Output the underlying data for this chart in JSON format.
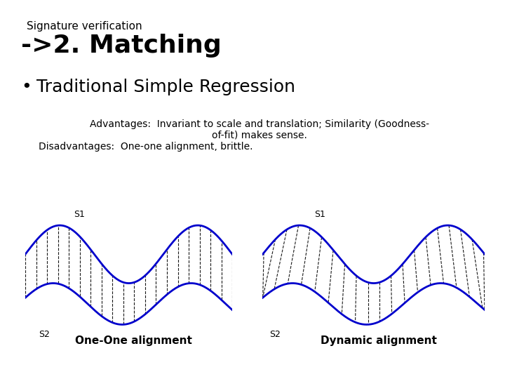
{
  "background_color": "#ffffff",
  "subtitle": "Signature verification",
  "title": "->2. Matching",
  "bullet_text": "Traditional Simple Regression",
  "advantages_line1": "Advantages:  Invariant to scale and translation; Similarity (Goodness-",
  "advantages_line2": "of-fit) makes sense.",
  "disadvantages": "Disadvantages:  One-one alignment, brittle.",
  "label_left": "One-One alignment",
  "label_right": "Dynamic alignment",
  "s1_label": "S1",
  "s2_label": "S2",
  "wave_color": "#0000cc",
  "line_color": "#000000",
  "text_color": "#000000",
  "title_fontsize": 26,
  "subtitle_fontsize": 11,
  "bullet_fontsize": 18,
  "body_fontsize": 10,
  "caption_fontsize": 11
}
